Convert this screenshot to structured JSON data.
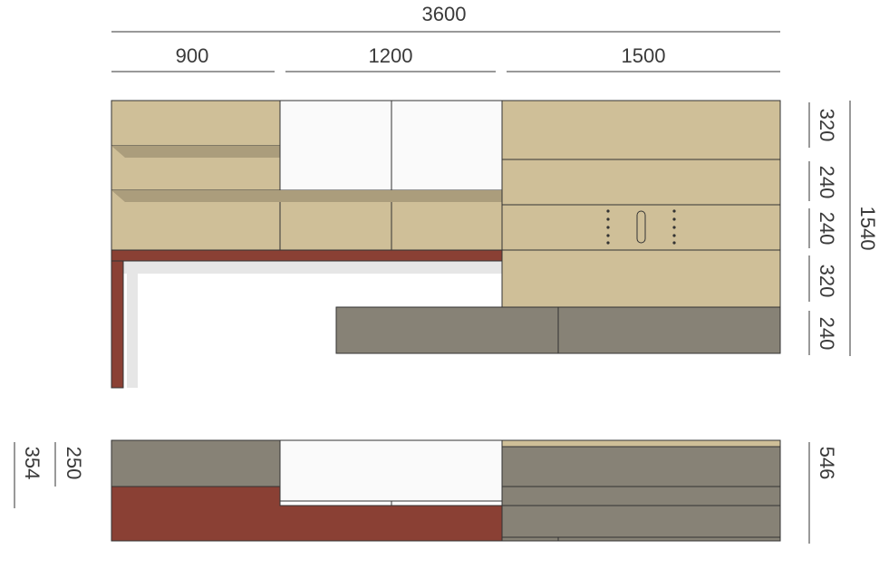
{
  "dimensions": {
    "total_width": 3600,
    "widths": [
      900,
      1200,
      1500
    ],
    "heights": [
      320,
      240,
      240,
      320,
      240
    ],
    "total_height": 1540,
    "lower_left": [
      250,
      354
    ],
    "lower_right": 546
  }
}
